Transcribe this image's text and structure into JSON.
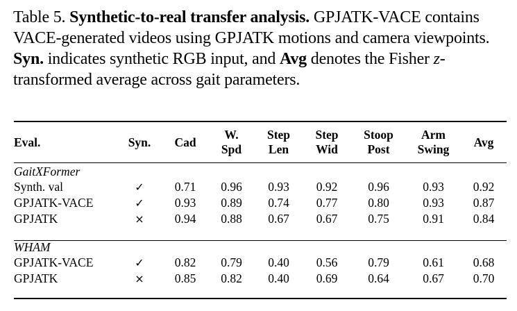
{
  "caption": {
    "prefix": "Table 5.",
    "title": "Synthetic-to-real transfer analysis.",
    "text1": "GPJATK-VACE contains VACE-generated videos using GPJATK motions and camera viewpoints.",
    "syn_term": "Syn.",
    "text2": "indicates synthetic RGB input, and",
    "avg_term": "Avg",
    "text3": "denotes the Fisher",
    "z_symbol": "z",
    "text4": "-transformed average across gait parameters."
  },
  "table": {
    "headers": {
      "eval": "Eval.",
      "syn": "Syn.",
      "cad": "Cad",
      "wspd_1": "W.",
      "wspd_2": "Spd",
      "steplen_1": "Step",
      "steplen_2": "Len",
      "stepwid_1": "Step",
      "stepwid_2": "Wid",
      "stoop_1": "Stoop",
      "stoop_2": "Post",
      "arm_1": "Arm",
      "arm_2": "Swing",
      "avg": "Avg"
    },
    "groups": [
      {
        "name": "GaitXFormer",
        "rows": [
          {
            "eval": "Synth. val",
            "syn": "✓",
            "cad": "0.71",
            "wspd": "0.96",
            "steplen": "0.93",
            "stepwid": "0.92",
            "stoop": "0.96",
            "arm": "0.93",
            "avg": "0.92"
          },
          {
            "eval": "GPJATK-VACE",
            "syn": "✓",
            "cad": "0.93",
            "wspd": "0.89",
            "steplen": "0.74",
            "stepwid": "0.77",
            "stoop": "0.80",
            "arm": "0.93",
            "avg": "0.87"
          },
          {
            "eval": "GPJATK",
            "syn": "×",
            "cad": "0.94",
            "wspd": "0.88",
            "steplen": "0.67",
            "stepwid": "0.67",
            "stoop": "0.75",
            "arm": "0.91",
            "avg": "0.84"
          }
        ]
      },
      {
        "name": "WHAM",
        "rows": [
          {
            "eval": "GPJATK-VACE",
            "syn": "✓",
            "cad": "0.82",
            "wspd": "0.79",
            "steplen": "0.40",
            "stepwid": "0.56",
            "stoop": "0.79",
            "arm": "0.61",
            "avg": "0.68"
          },
          {
            "eval": "GPJATK",
            "syn": "×",
            "cad": "0.85",
            "wspd": "0.82",
            "steplen": "0.40",
            "stepwid": "0.69",
            "stoop": "0.64",
            "arm": "0.67",
            "avg": "0.70"
          }
        ]
      }
    ]
  }
}
